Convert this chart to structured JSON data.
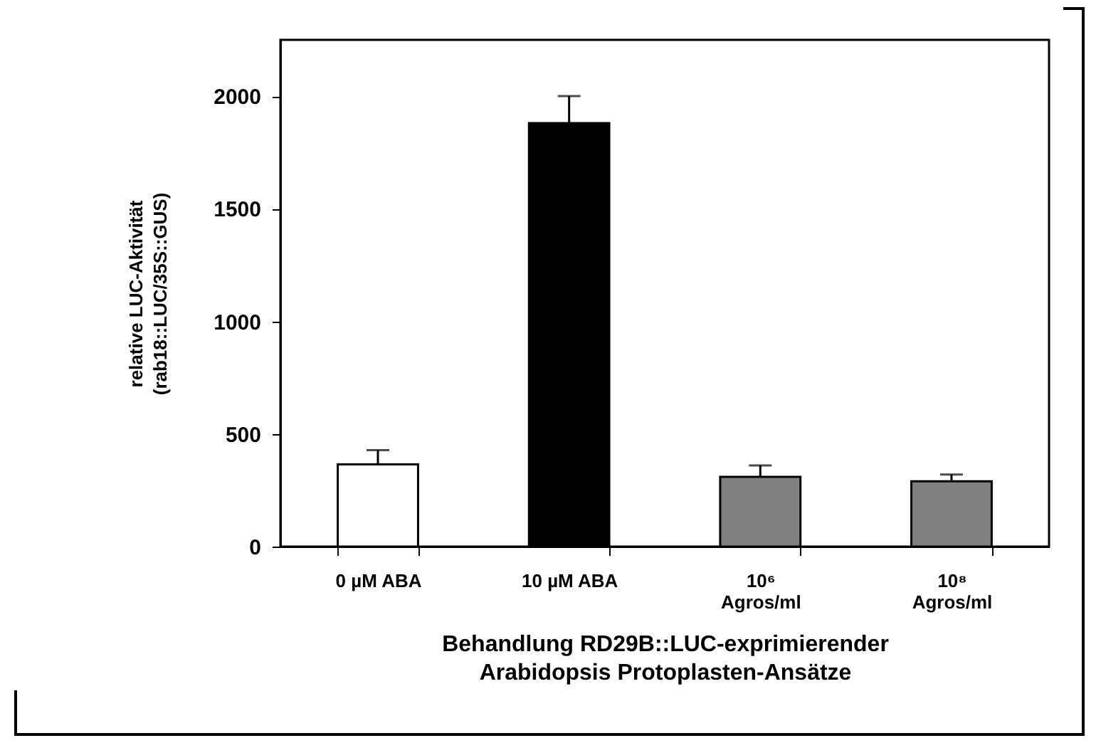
{
  "chart_data": {
    "type": "bar",
    "categories": [
      "0 µM ABA",
      "10 µM ABA",
      "10⁶\nAgros/ml",
      "10⁸\nAgros/ml"
    ],
    "values": [
      365,
      1880,
      310,
      290
    ],
    "colors": [
      "#ffffff",
      "#000000",
      "#808080",
      "#808080"
    ],
    "errors": [
      [
        365,
        428
      ],
      [
        1880,
        2000
      ],
      [
        310,
        360
      ],
      [
        290,
        320
      ]
    ],
    "ylabel": "relative LUC-Aktivität\n(rab18::LUC/35S::GUS)",
    "xlabel": "Behandlung RD29B::LUC-exprimierender\nArabidopsis Protoplasten-Ansätze",
    "ylim": [
      0,
      2250
    ],
    "yticks": [
      0,
      500,
      1000,
      1500,
      2000
    ],
    "grid": false,
    "legend": false
  }
}
